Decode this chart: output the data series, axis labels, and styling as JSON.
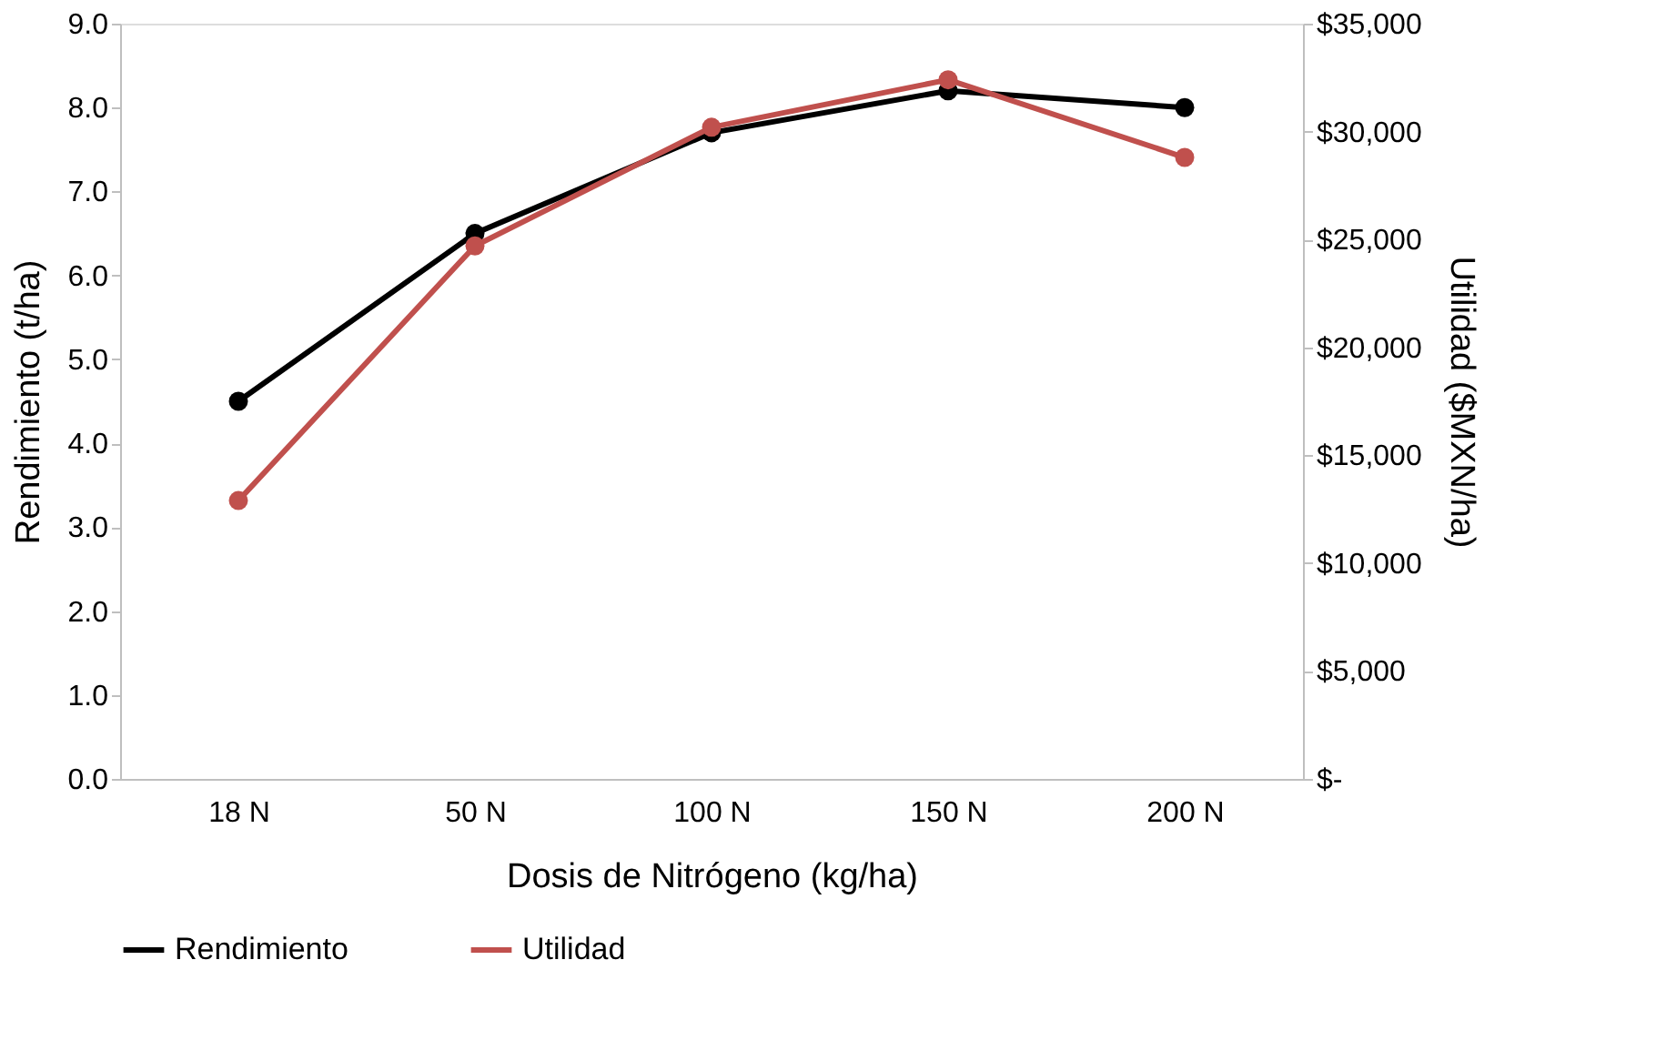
{
  "chart_data": {
    "type": "line",
    "xlabel": "Dosis de Nitrógeno (kg/ha)",
    "ylabel": "Rendimiento (t/ha)",
    "y2label": "Utilidad ($MXN/ha)",
    "categories": [
      "18 N",
      "50 N",
      "100 N",
      "150 N",
      "200 N"
    ],
    "series": [
      {
        "name": "Rendimiento",
        "color": "#000000",
        "values": [
          4.5,
          6.5,
          7.7,
          8.2,
          8.0
        ]
      },
      {
        "name": "Utilidad",
        "color": "#c0504d",
        "axis": "y2",
        "values": [
          12900,
          24700,
          30200,
          32400,
          28800
        ]
      }
    ],
    "ylim": [
      0,
      9
    ],
    "yticks": [
      {
        "value": 0,
        "label": "0.0"
      },
      {
        "value": 1,
        "label": "1.0"
      },
      {
        "value": 2,
        "label": "2.0"
      },
      {
        "value": 3,
        "label": "3.0"
      },
      {
        "value": 4,
        "label": "4.0"
      },
      {
        "value": 5,
        "label": "5.0"
      },
      {
        "value": 6,
        "label": "6.0"
      },
      {
        "value": 7,
        "label": "7.0"
      },
      {
        "value": 8,
        "label": "8.0"
      },
      {
        "value": 9,
        "label": "9.0"
      }
    ],
    "y2lim": [
      0,
      35000
    ],
    "y2ticks": [
      {
        "value": 0,
        "label": "$-"
      },
      {
        "value": 5000,
        "label": "$5,000"
      },
      {
        "value": 10000,
        "label": "$10,000"
      },
      {
        "value": 15000,
        "label": "$15,000"
      },
      {
        "value": 20000,
        "label": "$20,000"
      },
      {
        "value": 25000,
        "label": "$25,000"
      },
      {
        "value": 30000,
        "label": "$30,000"
      },
      {
        "value": 35000,
        "label": "$35,000"
      }
    ],
    "grid": false,
    "legend": "bottom",
    "marker": "circle",
    "line_style": "solid"
  }
}
